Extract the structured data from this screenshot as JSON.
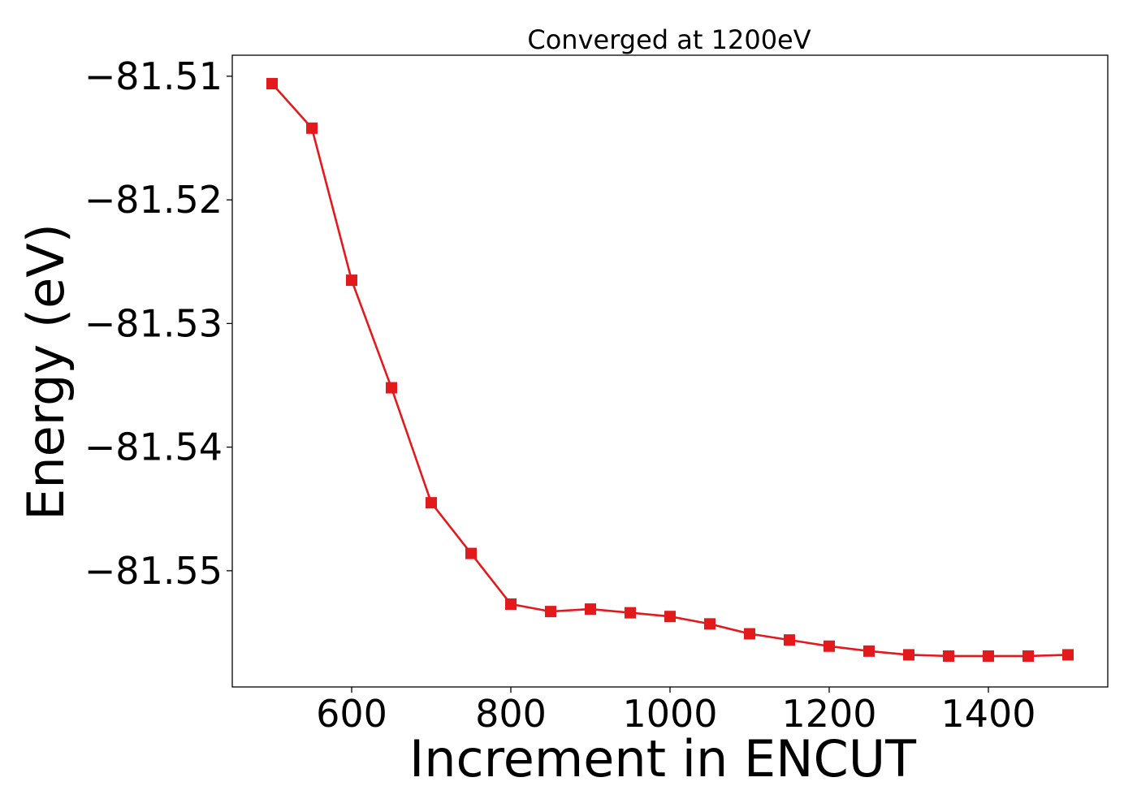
{
  "chart_data": {
    "type": "line",
    "title": "Converged at 1200eV",
    "xlabel": "Increment in ENCUT",
    "ylabel": "Energy (eV)",
    "xlim": [
      450,
      1550
    ],
    "ylim": [
      -81.5594,
      -81.5083
    ],
    "xticks": [
      600,
      800,
      1000,
      1200,
      1400
    ],
    "yticks": [
      -81.51,
      -81.52,
      -81.53,
      -81.54,
      -81.55
    ],
    "ytick_labels": [
      "−81.51",
      "−81.52",
      "−81.53",
      "−81.54",
      "−81.55"
    ],
    "grid": false,
    "legend": "none",
    "series": [
      {
        "color": "#e31a1c",
        "marker": "square",
        "x": [
          500,
          550,
          600,
          650,
          700,
          750,
          800,
          850,
          900,
          950,
          1000,
          1050,
          1100,
          1150,
          1200,
          1250,
          1300,
          1350,
          1400,
          1450,
          1500
        ],
        "y": [
          -81.5106,
          -81.5142,
          -81.5265,
          -81.5352,
          -81.5445,
          -81.5486,
          -81.5527,
          -81.5533,
          -81.5531,
          -81.5534,
          -81.5537,
          -81.5543,
          -81.5551,
          -81.5556,
          -81.5561,
          -81.5565,
          -81.5568,
          -81.5569,
          -81.5569,
          -81.5569,
          -81.5568
        ]
      }
    ]
  }
}
